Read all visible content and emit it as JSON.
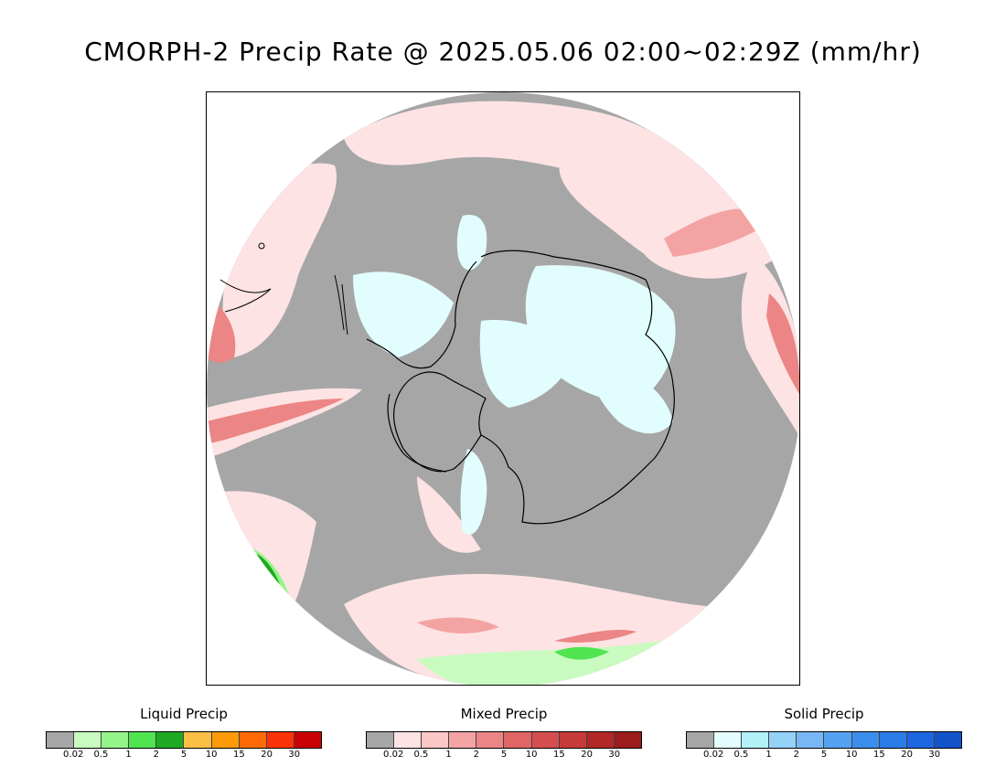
{
  "title": "CMORPH-2 Precip Rate @ 2025.05.06 02:00~02:29Z (mm/hr)",
  "map": {
    "projection": "south-polar-stereographic",
    "background_color": "#a6a6a6",
    "features": [
      "antarctica-coastline",
      "south-america-tip",
      "australia-edge",
      "new-zealand",
      "africa-edge"
    ]
  },
  "legends": [
    {
      "title": "Liquid Precip",
      "colors": [
        "#a6a6a6",
        "#c9fbc0",
        "#96f58a",
        "#50e450",
        "#1faa23",
        "#fbbf43",
        "#fc9a07",
        "#fd6a06",
        "#fc3209",
        "#c90004"
      ],
      "ticks": [
        "0.02",
        "0.5",
        "1",
        "2",
        "5",
        "10",
        "15",
        "20",
        "30"
      ]
    },
    {
      "title": "Mixed Precip",
      "colors": [
        "#a6a6a6",
        "#fde3e3",
        "#fbc6c6",
        "#f4a3a3",
        "#ec8585",
        "#e06666",
        "#d54d4d",
        "#c73a3a",
        "#b32727",
        "#9c1b1b"
      ],
      "ticks": [
        "0.02",
        "0.5",
        "1",
        "2",
        "5",
        "10",
        "15",
        "20",
        "30"
      ]
    },
    {
      "title": "Solid Precip",
      "colors": [
        "#a6a6a6",
        "#e1fdfd",
        "#b3f1f9",
        "#95d2f8",
        "#78b6f6",
        "#55a2f1",
        "#3c8eec",
        "#2c7be6",
        "#1d66df",
        "#1354cb"
      ],
      "ticks": [
        "0.02",
        "0.5",
        "1",
        "2",
        "5",
        "10",
        "15",
        "20",
        "30"
      ]
    }
  ]
}
